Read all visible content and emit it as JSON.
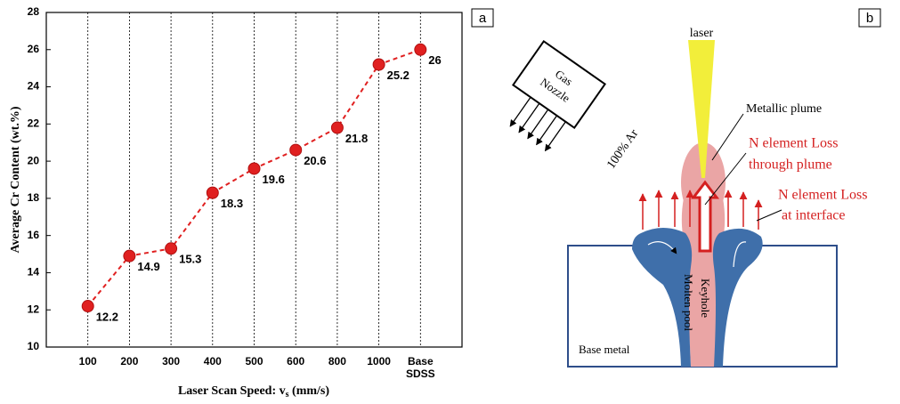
{
  "chart_data": {
    "type": "line",
    "panel_label": "a",
    "ylabel": "Average Cr Content (wt.%)",
    "xlabel": [
      "Laser Scan Speed: v",
      "s",
      " (mm/s)"
    ],
    "categories": [
      "100",
      "200",
      "300",
      "400",
      "500",
      "600",
      "800",
      "1000",
      "Base SDSS"
    ],
    "series": [
      {
        "color": "#e02020",
        "values": [
          12.2,
          14.9,
          15.3,
          18.3,
          19.6,
          20.6,
          21.8,
          25.2,
          26
        ]
      }
    ],
    "ylim": [
      10,
      28
    ],
    "yticks": [
      10,
      12,
      14,
      16,
      18,
      20,
      22,
      24,
      26,
      28
    ],
    "grid": true
  },
  "diagram": {
    "panel_label": "b",
    "laser": "laser",
    "nozzle": [
      "Gas",
      "Nozzle"
    ],
    "gas": "100% Ar",
    "plume": "Metallic plume",
    "loss_plume": [
      "N element Loss",
      "through plume"
    ],
    "loss_interface": [
      "N element Loss",
      "at interface"
    ],
    "base_metal": "Base metal",
    "molten_pool": "Molten pool",
    "keyhole": "Keyhole"
  }
}
